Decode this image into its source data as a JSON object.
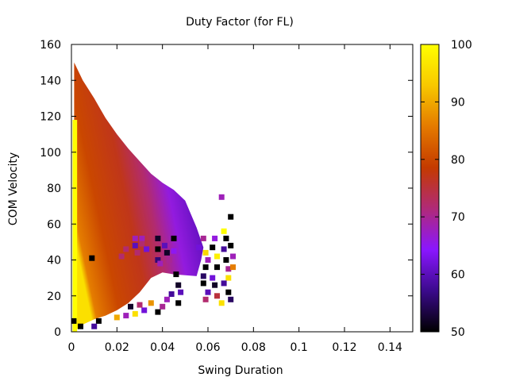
{
  "chart_data": {
    "type": "heatmap",
    "title": "Duty Factor (for FL)",
    "xlabel": "Swing Duration",
    "ylabel": "COM Velocity",
    "xlim": [
      0,
      0.15
    ],
    "ylim": [
      0,
      160
    ],
    "xticks": [
      "0",
      "0.02",
      "0.04",
      "0.06",
      "0.08",
      "0.1",
      "0.12",
      "0.14"
    ],
    "yticks": [
      "0",
      "20",
      "40",
      "60",
      "80",
      "100",
      "120",
      "140",
      "160"
    ],
    "colorbar": {
      "range": [
        50,
        100
      ],
      "ticks": [
        "50",
        "60",
        "70",
        "80",
        "90",
        "100"
      ],
      "palette": [
        "#000000",
        "#3b0a8c",
        "#8a16ff",
        "#b02a78",
        "#c43a00",
        "#e47a00",
        "#f8c800",
        "#ffff00"
      ]
    },
    "region": {
      "description_free": true,
      "boundary": [
        [
          0.0012,
          150
        ],
        [
          0.005,
          140
        ],
        [
          0.01,
          130
        ],
        [
          0.015,
          119
        ],
        [
          0.02,
          110
        ],
        [
          0.025,
          102
        ],
        [
          0.03,
          95
        ],
        [
          0.035,
          88
        ],
        [
          0.04,
          83
        ],
        [
          0.045,
          79
        ],
        [
          0.05,
          73
        ],
        [
          0.055,
          58
        ],
        [
          0.058,
          47
        ],
        [
          0.057,
          40
        ],
        [
          0.055,
          31
        ],
        [
          0.045,
          32
        ],
        [
          0.04,
          33
        ],
        [
          0.035,
          30
        ],
        [
          0.03,
          22
        ],
        [
          0.025,
          16
        ],
        [
          0.02,
          12
        ],
        [
          0.015,
          9
        ],
        [
          0.01,
          7
        ],
        [
          0.005,
          4
        ],
        [
          0.0012,
          0
        ]
      ]
    },
    "points": [
      {
        "x": 0.009,
        "y": 41,
        "v": 50
      },
      {
        "x": 0.022,
        "y": 42,
        "v": 72
      },
      {
        "x": 0.024,
        "y": 46,
        "v": 72
      },
      {
        "x": 0.028,
        "y": 52,
        "v": 68
      },
      {
        "x": 0.028,
        "y": 48,
        "v": 60
      },
      {
        "x": 0.029,
        "y": 44,
        "v": 72
      },
      {
        "x": 0.031,
        "y": 52,
        "v": 68
      },
      {
        "x": 0.031,
        "y": 49,
        "v": 72
      },
      {
        "x": 0.033,
        "y": 46,
        "v": 62
      },
      {
        "x": 0.038,
        "y": 52,
        "v": 52
      },
      {
        "x": 0.038,
        "y": 46,
        "v": 50
      },
      {
        "x": 0.038,
        "y": 40,
        "v": 56
      },
      {
        "x": 0.039,
        "y": 38,
        "v": 68
      },
      {
        "x": 0.041,
        "y": 48,
        "v": 60
      },
      {
        "x": 0.042,
        "y": 44,
        "v": 52
      },
      {
        "x": 0.043,
        "y": 40,
        "v": 70
      },
      {
        "x": 0.045,
        "y": 52,
        "v": 50
      },
      {
        "x": 0.045,
        "y": 45,
        "v": 65
      },
      {
        "x": 0.046,
        "y": 32,
        "v": 50
      },
      {
        "x": 0.047,
        "y": 26,
        "v": 52
      },
      {
        "x": 0.048,
        "y": 22,
        "v": 60
      },
      {
        "x": 0.047,
        "y": 16,
        "v": 50
      },
      {
        "x": 0.044,
        "y": 21,
        "v": 58
      },
      {
        "x": 0.042,
        "y": 18,
        "v": 68
      },
      {
        "x": 0.04,
        "y": 14,
        "v": 70
      },
      {
        "x": 0.038,
        "y": 11,
        "v": 50
      },
      {
        "x": 0.035,
        "y": 16,
        "v": 88
      },
      {
        "x": 0.032,
        "y": 12,
        "v": 62
      },
      {
        "x": 0.03,
        "y": 15,
        "v": 72
      },
      {
        "x": 0.028,
        "y": 10,
        "v": 96
      },
      {
        "x": 0.026,
        "y": 14,
        "v": 52
      },
      {
        "x": 0.024,
        "y": 9,
        "v": 68
      },
      {
        "x": 0.02,
        "y": 8,
        "v": 90
      },
      {
        "x": 0.012,
        "y": 6,
        "v": 50
      },
      {
        "x": 0.01,
        "y": 3,
        "v": 58
      },
      {
        "x": 0.004,
        "y": 3,
        "v": 50
      },
      {
        "x": 0.001,
        "y": 6,
        "v": 50
      },
      {
        "x": 0.056,
        "y": 47,
        "v": 62
      },
      {
        "x": 0.058,
        "y": 52,
        "v": 70
      },
      {
        "x": 0.059,
        "y": 44,
        "v": 95
      },
      {
        "x": 0.06,
        "y": 40,
        "v": 68
      },
      {
        "x": 0.059,
        "y": 36,
        "v": 50
      },
      {
        "x": 0.058,
        "y": 31,
        "v": 55
      },
      {
        "x": 0.058,
        "y": 27,
        "v": 50
      },
      {
        "x": 0.06,
        "y": 22,
        "v": 60
      },
      {
        "x": 0.059,
        "y": 18,
        "v": 72
      },
      {
        "x": 0.062,
        "y": 47,
        "v": 50
      },
      {
        "x": 0.063,
        "y": 52,
        "v": 66
      },
      {
        "x": 0.064,
        "y": 42,
        "v": 98
      },
      {
        "x": 0.064,
        "y": 36,
        "v": 50
      },
      {
        "x": 0.062,
        "y": 30,
        "v": 62
      },
      {
        "x": 0.063,
        "y": 26,
        "v": 52
      },
      {
        "x": 0.064,
        "y": 20,
        "v": 75
      },
      {
        "x": 0.066,
        "y": 75,
        "v": 68
      },
      {
        "x": 0.067,
        "y": 56,
        "v": 100
      },
      {
        "x": 0.068,
        "y": 52,
        "v": 50
      },
      {
        "x": 0.067,
        "y": 46,
        "v": 58
      },
      {
        "x": 0.068,
        "y": 40,
        "v": 50
      },
      {
        "x": 0.069,
        "y": 35,
        "v": 70
      },
      {
        "x": 0.069,
        "y": 30,
        "v": 96
      },
      {
        "x": 0.067,
        "y": 27,
        "v": 58
      },
      {
        "x": 0.069,
        "y": 22,
        "v": 50
      },
      {
        "x": 0.07,
        "y": 64,
        "v": 50
      },
      {
        "x": 0.07,
        "y": 48,
        "v": 50
      },
      {
        "x": 0.071,
        "y": 42,
        "v": 68
      },
      {
        "x": 0.071,
        "y": 36,
        "v": 86
      },
      {
        "x": 0.07,
        "y": 18,
        "v": 55
      },
      {
        "x": 0.066,
        "y": 16,
        "v": 96
      }
    ]
  }
}
